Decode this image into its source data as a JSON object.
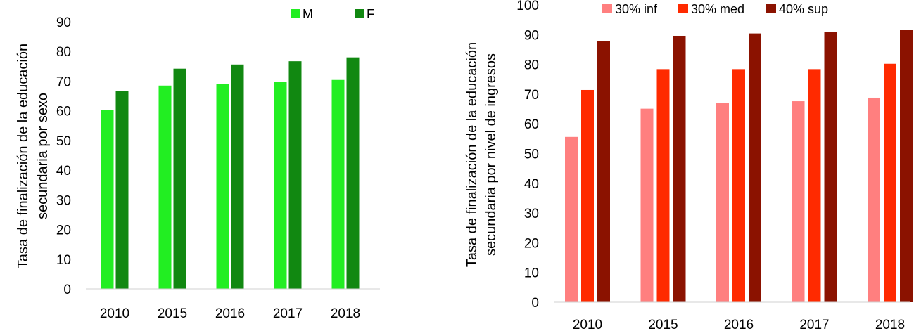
{
  "chart_data": [
    {
      "type": "bar",
      "categories": [
        "2010",
        "2015",
        "2016",
        "2017",
        "2018"
      ],
      "ylabel_lines": [
        "Tasa de finalización de la educación",
        "secundaria por sexo"
      ],
      "ylim": [
        0,
        90
      ],
      "yticks": [
        "0",
        "10",
        "20",
        "30",
        "40",
        "50",
        "60",
        "70",
        "80",
        "90"
      ],
      "grid": false,
      "legend_position": "top-right",
      "series": [
        {
          "name": "M",
          "color": "#22ee22",
          "values": [
            60.3,
            68.5,
            69.1,
            69.8,
            70.4
          ]
        },
        {
          "name": "F",
          "color": "#118811",
          "values": [
            66.6,
            74.2,
            75.6,
            76.7,
            78.0
          ]
        }
      ]
    },
    {
      "type": "bar",
      "categories": [
        "2010",
        "2015",
        "2016",
        "2017",
        "2018"
      ],
      "ylabel_lines": [
        "Tasa de finalización de la educación",
        "secundaria por nivel de ingresos"
      ],
      "ylim": [
        0,
        100
      ],
      "yticks": [
        "0",
        "10",
        "20",
        "30",
        "40",
        "50",
        "60",
        "70",
        "80",
        "90",
        "100"
      ],
      "grid": false,
      "legend_position": "top",
      "series": [
        {
          "name": "30% inf",
          "color": "#ff7f7f",
          "values": [
            55.6,
            65.1,
            66.9,
            67.6,
            68.8
          ]
        },
        {
          "name": "30% med",
          "color": "#ff2a00",
          "values": [
            71.4,
            78.4,
            78.4,
            78.4,
            80.2
          ]
        },
        {
          "name": "40% sup",
          "color": "#8b1200",
          "values": [
            87.8,
            89.6,
            90.4,
            91.0,
            91.7
          ]
        }
      ]
    }
  ]
}
